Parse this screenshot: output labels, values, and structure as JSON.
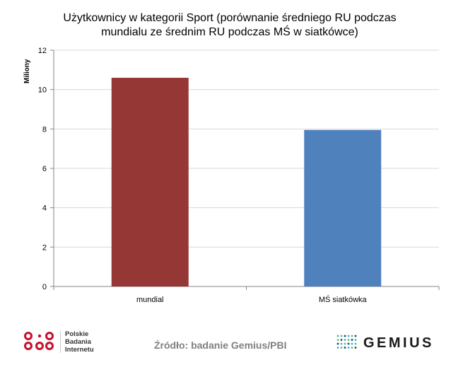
{
  "chart_data": {
    "type": "bar",
    "title_line1": "Użytkownicy  w kategorii Sport (porównanie średniego RU podczas",
    "title_line2": "mundialu ze średnim RU podczas MŚ w siatkówce)",
    "ylabel": "Miliony",
    "xlabel": "",
    "categories": [
      "mundial",
      "MŚ siatkówka"
    ],
    "values": [
      10.6,
      7.95
    ],
    "colors": [
      "#953735",
      "#4f81bd"
    ],
    "ylim": [
      0,
      12
    ],
    "yticks": [
      0,
      2,
      4,
      6,
      8,
      10,
      12
    ],
    "grid": true,
    "legend": "none"
  },
  "footer": {
    "pbi_line1": "Polskie",
    "pbi_line2": "Badania",
    "pbi_line3": "Internetu",
    "source": "Źródło: badanie Gemius/PBI",
    "gemius": "GEMIUS",
    "pbi_color": "#c8102e",
    "gemius_dot_colors": [
      "#2fb5e3",
      "#6cc24a",
      "#1e3f8a"
    ]
  }
}
